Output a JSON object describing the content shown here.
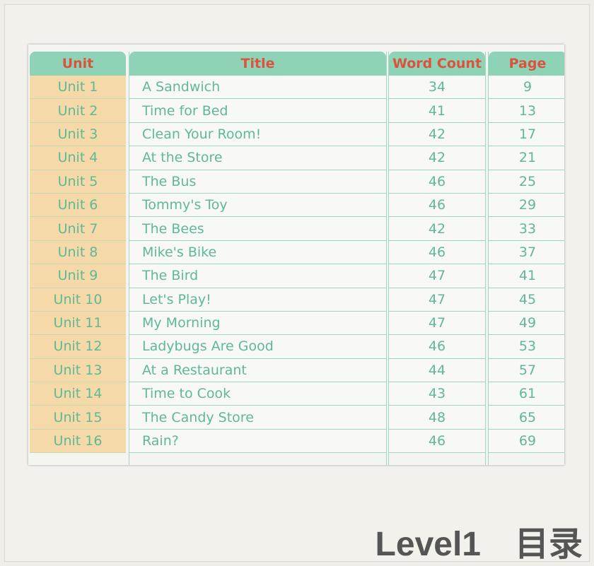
{
  "headers": {
    "unit": "Unit",
    "title": "Title",
    "word_count": "Word Count",
    "page": "Page"
  },
  "rows": [
    {
      "unit": "Unit 1",
      "title": "A Sandwich",
      "word_count": "34",
      "page": "9"
    },
    {
      "unit": "Unit 2",
      "title": "Time for Bed",
      "word_count": "41",
      "page": "13"
    },
    {
      "unit": "Unit 3",
      "title": "Clean Your Room!",
      "word_count": "42",
      "page": "17"
    },
    {
      "unit": "Unit 4",
      "title": "At the Store",
      "word_count": "42",
      "page": "21"
    },
    {
      "unit": "Unit 5",
      "title": "The Bus",
      "word_count": "46",
      "page": "25"
    },
    {
      "unit": "Unit 6",
      "title": "Tommy's Toy",
      "word_count": "46",
      "page": "29"
    },
    {
      "unit": "Unit 7",
      "title": "The Bees",
      "word_count": "42",
      "page": "33"
    },
    {
      "unit": "Unit 8",
      "title": "Mike's Bike",
      "word_count": "46",
      "page": "37"
    },
    {
      "unit": "Unit 9",
      "title": "The Bird",
      "word_count": "47",
      "page": "41"
    },
    {
      "unit": "Unit 10",
      "title": "Let's Play!",
      "word_count": "47",
      "page": "45"
    },
    {
      "unit": "Unit 11",
      "title": "My Morning",
      "word_count": "47",
      "page": "49"
    },
    {
      "unit": "Unit 12",
      "title": "Ladybugs Are Good",
      "word_count": "46",
      "page": "53"
    },
    {
      "unit": "Unit 13",
      "title": "At a Restaurant",
      "word_count": "44",
      "page": "57"
    },
    {
      "unit": "Unit 14",
      "title": "Time to Cook",
      "word_count": "43",
      "page": "61"
    },
    {
      "unit": "Unit 15",
      "title": "The Candy Store",
      "word_count": "48",
      "page": "65"
    },
    {
      "unit": "Unit 16",
      "title": "Rain?",
      "word_count": "46",
      "page": "69"
    }
  ],
  "footer": {
    "level": "Level1",
    "toc": "目录"
  },
  "colors": {
    "header_bg": "#8fd3b6",
    "header_text": "#d9543e",
    "unit_bg": "#f6d9a8",
    "cell_text": "#5fb896"
  }
}
